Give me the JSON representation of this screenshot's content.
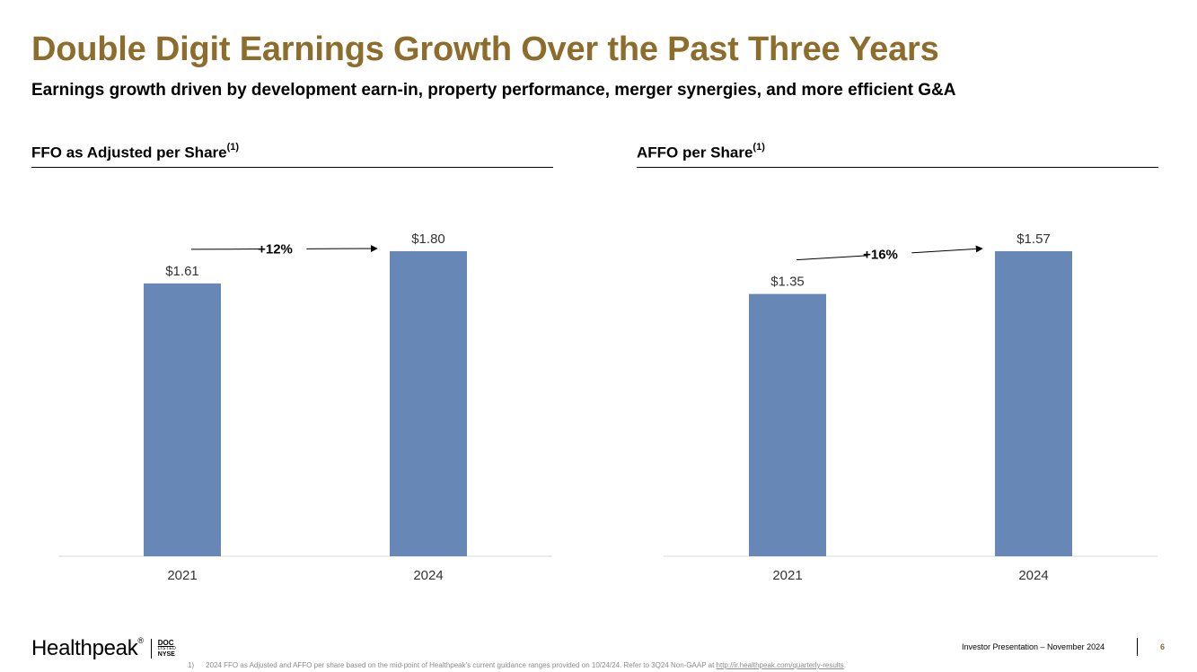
{
  "title": "Double Digit Earnings Growth Over the Past Three Years",
  "subtitle": "Earnings growth driven by development earn-in, property performance, merger synergies, and more efficient G&A",
  "colors": {
    "accent": "#8c6d2c",
    "bar": "#6787b7"
  },
  "chart_data": [
    {
      "type": "bar",
      "title": "FFO as Adjusted per Share",
      "title_note": "(1)",
      "categories": [
        "2021",
        "2024"
      ],
      "values": [
        1.61,
        1.8
      ],
      "value_labels": [
        "$1.61",
        "$1.80"
      ],
      "growth_label": "+12%",
      "ylim": [
        0,
        1.8
      ],
      "grid": false,
      "legend": "none"
    },
    {
      "type": "bar",
      "title": "AFFO per Share",
      "title_note": "(1)",
      "categories": [
        "2021",
        "2024"
      ],
      "values": [
        1.35,
        1.57
      ],
      "value_labels": [
        "$1.35",
        "$1.57"
      ],
      "growth_label": "+16%",
      "ylim": [
        0,
        1.57
      ],
      "grid": false,
      "legend": "none"
    }
  ],
  "footer": {
    "logo_name": "Healthpeak",
    "logo_mark": "®",
    "ticker": "DOC",
    "ticker_sub": "LISTED",
    "exchange": "NYSE",
    "presentation": "Investor Presentation – November 2024",
    "page_number": "6",
    "footnote_number": "1)",
    "footnote_text": "2024 FFO as Adjusted and AFFO per share based on the mid-point of Healthpeak's current guidance ranges provided on 10/24/24. Refer to 3Q24 Non-GAAP at ",
    "footnote_link": "http://ir.healthpeak.com/quarterly-results",
    "footnote_end": "."
  }
}
